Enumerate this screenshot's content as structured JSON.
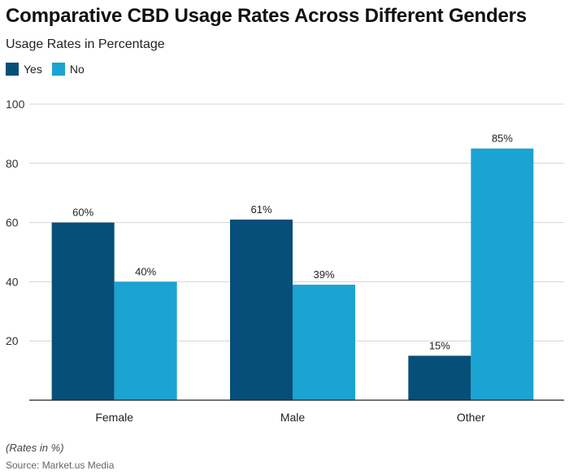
{
  "header": {
    "title": "Comparative CBD Usage Rates Across Different Genders",
    "subtitle": "Usage Rates in Percentage"
  },
  "legend": [
    {
      "label": "Yes",
      "color": "#064f78"
    },
    {
      "label": "No",
      "color": "#1ba3d1"
    }
  ],
  "chart_data": {
    "type": "bar",
    "title": "Comparative CBD Usage Rates Across Different Genders",
    "subtitle": "Usage Rates in Percentage",
    "xlabel": "",
    "ylabel": "",
    "categories": [
      "Female",
      "Male",
      "Other"
    ],
    "series": [
      {
        "name": "Yes",
        "color": "#064f78",
        "values": [
          60,
          61,
          15
        ],
        "labels": [
          "60%",
          "61%",
          "15%"
        ]
      },
      {
        "name": "No",
        "color": "#1ba3d1",
        "values": [
          40,
          39,
          85
        ],
        "labels": [
          "40%",
          "39%",
          "85%"
        ]
      }
    ],
    "ylim": [
      0,
      100
    ],
    "yticks": [
      20,
      40,
      60,
      80,
      100
    ],
    "grid": true,
    "legend_position": "top-left"
  },
  "footer": {
    "note": "(Rates in %)",
    "source": "Source: Market.us Media"
  }
}
